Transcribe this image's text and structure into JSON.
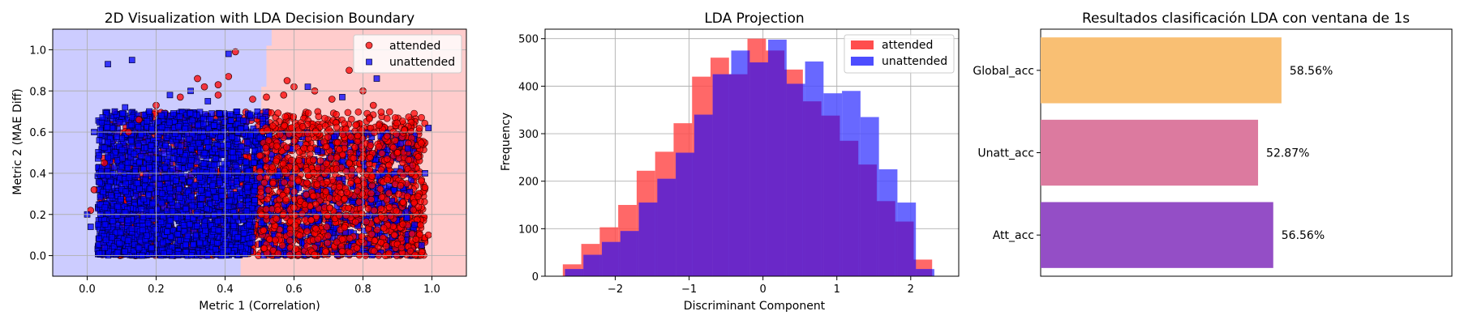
{
  "colors": {
    "attended": "#ff0000",
    "unattended": "#0000ff",
    "region_attended": "#ffcccc",
    "region_unattended": "#ccccff",
    "hist_attended": "#ff4d4d",
    "hist_unattended": "#4d4dff",
    "hist_overlap": "#6a28c8",
    "bar_global": "#f9bf73",
    "bar_unatt": "#dc7a9f",
    "bar_att": "#944ec6",
    "grid": "#b0b0b0"
  },
  "chart_data": [
    {
      "type": "scatter",
      "title": "2D Visualization with LDA Decision Boundary",
      "xlabel": "Metric 1 (Correlation)",
      "ylabel": "Metric 2 (MAE Diff)",
      "xlim": [
        -0.1,
        1.1
      ],
      "ylim": [
        -0.1,
        1.1
      ],
      "xticks": [
        0.0,
        0.2,
        0.4,
        0.6,
        0.8,
        1.0
      ],
      "xtick_labels": [
        "0.0",
        "0.2",
        "0.4",
        "0.6",
        "0.8",
        "1.0"
      ],
      "yticks": [
        0.0,
        0.2,
        0.4,
        0.6,
        0.8,
        1.0
      ],
      "ytick_labels": [
        "0.0",
        "0.2",
        "0.4",
        "0.6",
        "0.8",
        "1.0"
      ],
      "grid": true,
      "legend_position": "top-right",
      "decision_boundary": [
        {
          "x": 0.445,
          "y": -0.1
        },
        {
          "x": 0.445,
          "y": 0.02
        },
        {
          "x": 0.46,
          "y": 0.02
        },
        {
          "x": 0.46,
          "y": 0.2
        },
        {
          "x": 0.475,
          "y": 0.2
        },
        {
          "x": 0.475,
          "y": 0.42
        },
        {
          "x": 0.49,
          "y": 0.42
        },
        {
          "x": 0.49,
          "y": 0.62
        },
        {
          "x": 0.505,
          "y": 0.62
        },
        {
          "x": 0.505,
          "y": 0.82
        },
        {
          "x": 0.52,
          "y": 0.82
        },
        {
          "x": 0.52,
          "y": 1.02
        },
        {
          "x": 0.535,
          "y": 1.02
        },
        {
          "x": 0.535,
          "y": 1.1
        }
      ],
      "series": [
        {
          "name": "attended",
          "marker": "circle",
          "points": [
            {
              "x": 0.34,
              "y": 0.82
            },
            {
              "x": 0.32,
              "y": 0.86
            },
            {
              "x": 0.38,
              "y": 0.83
            },
            {
              "x": 0.41,
              "y": 0.87
            },
            {
              "x": 0.43,
              "y": 0.99
            },
            {
              "x": 0.38,
              "y": 0.78
            },
            {
              "x": 0.58,
              "y": 0.85
            },
            {
              "x": 0.6,
              "y": 0.82
            },
            {
              "x": 0.57,
              "y": 0.78
            },
            {
              "x": 0.66,
              "y": 0.8
            },
            {
              "x": 0.52,
              "y": 0.77
            },
            {
              "x": 0.76,
              "y": 0.9
            },
            {
              "x": 0.71,
              "y": 0.76
            },
            {
              "x": 0.8,
              "y": 0.8
            },
            {
              "x": 0.83,
              "y": 0.73
            },
            {
              "x": 0.87,
              "y": 0.58
            },
            {
              "x": 0.92,
              "y": 0.61
            },
            {
              "x": 0.96,
              "y": 0.48
            },
            {
              "x": 0.98,
              "y": 0.33
            },
            {
              "x": 0.99,
              "y": 0.1
            },
            {
              "x": 0.02,
              "y": 0.32
            },
            {
              "x": 0.05,
              "y": 0.45
            },
            {
              "x": 0.01,
              "y": 0.22
            },
            {
              "x": 0.2,
              "y": 0.73
            },
            {
              "x": 0.27,
              "y": 0.77
            },
            {
              "x": 0.15,
              "y": 0.66
            },
            {
              "x": 0.9,
              "y": 0.5
            },
            {
              "x": 0.94,
              "y": 0.4
            },
            {
              "x": 0.12,
              "y": 0.6
            },
            {
              "x": 0.48,
              "y": 0.76
            }
          ],
          "point_estimate": "dense cloud of markers over approx. x 0.03–0.98, y 0.0–0.70, denser toward the attended (right) region"
        },
        {
          "name": "unattended",
          "marker": "square",
          "points": [
            {
              "x": 0.06,
              "y": 0.93
            },
            {
              "x": 0.13,
              "y": 0.95
            },
            {
              "x": 0.41,
              "y": 0.98
            },
            {
              "x": 0.02,
              "y": 0.6
            },
            {
              "x": 0.08,
              "y": 0.7
            },
            {
              "x": 0.11,
              "y": 0.72
            },
            {
              "x": 0.24,
              "y": 0.78
            },
            {
              "x": 0.3,
              "y": 0.8
            },
            {
              "x": 0.35,
              "y": 0.75
            },
            {
              "x": 0.84,
              "y": 0.86
            },
            {
              "x": 0.64,
              "y": 0.82
            },
            {
              "x": 0.74,
              "y": 0.77
            },
            {
              "x": 0.99,
              "y": 0.62
            },
            {
              "x": 0.93,
              "y": 0.52
            },
            {
              "x": 0.98,
              "y": 0.4
            },
            {
              "x": 0.0,
              "y": 0.2
            },
            {
              "x": 0.01,
              "y": 0.14
            },
            {
              "x": 0.97,
              "y": 0.05
            },
            {
              "x": 0.95,
              "y": 0.15
            },
            {
              "x": 0.18,
              "y": 0.7
            }
          ],
          "point_estimate": "dense cloud of markers over approx. x 0.03–0.98, y 0.0–0.70, denser toward the unattended (left) region"
        }
      ]
    },
    {
      "type": "bar",
      "subtype": "histogram",
      "title": "LDA Projection",
      "xlabel": "Discriminant Component",
      "ylabel": "Frequency",
      "xlim": [
        -2.95,
        2.65
      ],
      "ylim": [
        0,
        520
      ],
      "xticks": [
        -2,
        -1,
        0,
        1,
        2
      ],
      "xtick_labels": [
        "−2",
        "−1",
        "0",
        "1",
        "2"
      ],
      "yticks": [
        0,
        100,
        200,
        300,
        400,
        500
      ],
      "ytick_labels": [
        "0",
        "100",
        "200",
        "300",
        "400",
        "500"
      ],
      "grid": true,
      "legend_position": "top-right",
      "series": [
        {
          "name": "attended",
          "bin_edges": [
            -2.71,
            -2.46,
            -2.21,
            -1.96,
            -1.71,
            -1.46,
            -1.21,
            -0.96,
            -0.71,
            -0.46,
            -0.21,
            0.04,
            0.29,
            0.54,
            0.79,
            1.04,
            1.29,
            1.54,
            1.79,
            2.04,
            2.29
          ],
          "counts": [
            25,
            68,
            103,
            150,
            222,
            262,
            322,
            420,
            460,
            425,
            500,
            475,
            435,
            368,
            338,
            285,
            235,
            158,
            115,
            35
          ]
        },
        {
          "name": "unattended",
          "bin_edges": [
            -2.68,
            -2.43,
            -2.18,
            -1.93,
            -1.68,
            -1.43,
            -1.18,
            -0.93,
            -0.68,
            -0.43,
            -0.18,
            0.07,
            0.32,
            0.57,
            0.82,
            1.07,
            1.32,
            1.57,
            1.82,
            2.07,
            2.32
          ],
          "counts": [
            15,
            45,
            72,
            95,
            155,
            205,
            260,
            340,
            425,
            475,
            450,
            498,
            405,
            452,
            385,
            390,
            335,
            225,
            155,
            15
          ]
        }
      ]
    },
    {
      "type": "bar",
      "orientation": "horizontal",
      "title": "Resultados clasificación LDA con ventana de 1s",
      "xlabel": "",
      "ylabel": "",
      "xlim": [
        0,
        100
      ],
      "grid": false,
      "categories": [
        "Global_acc",
        "Unatt_acc",
        "Att_acc"
      ],
      "values": [
        58.56,
        52.87,
        56.56
      ],
      "value_labels": [
        "58.56%",
        "52.87%",
        "56.56%"
      ]
    }
  ]
}
